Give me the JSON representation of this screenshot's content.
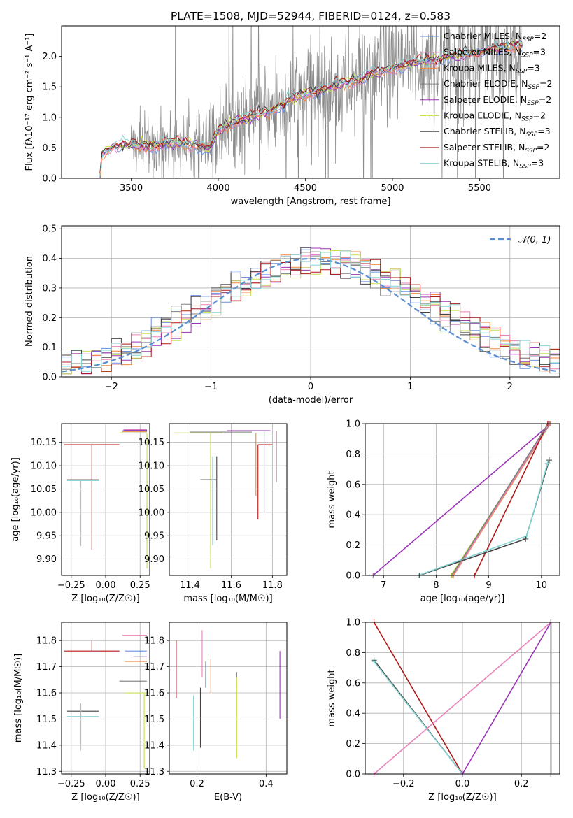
{
  "figure_title": "PLATE=1508, MJD=52944, FIBERID=0124, z=0.583",
  "model_colors": {
    "Chabrier MILES": "#6a8fe0",
    "Salpeter MILES": "#e882b8",
    "Kroupa MILES": "#f2863a",
    "Chabrier ELODIE": "#7f7f7f",
    "Salpeter ELODIE": "#9b35b5",
    "Kroupa ELODIE": "#c8dd55",
    "Chabrier STELIB": "#444444",
    "Salpeter STELIB": "#b01818",
    "Kroupa STELIB": "#87d4d4"
  },
  "legend_entries": [
    {
      "name": "Chabrier MILES",
      "n": "2"
    },
    {
      "name": "Salpeter MILES",
      "n": "3"
    },
    {
      "name": "Kroupa MILES",
      "n": "3"
    },
    {
      "name": "Chabrier ELODIE",
      "n": "2"
    },
    {
      "name": "Salpeter ELODIE",
      "n": "2"
    },
    {
      "name": "Kroupa ELODIE",
      "n": "2"
    },
    {
      "name": "Chabrier STELIB",
      "n": "3"
    },
    {
      "name": "Salpeter STELIB",
      "n": "2"
    },
    {
      "name": "Kroupa STELIB",
      "n": "3"
    }
  ],
  "chart_data": [
    {
      "id": "spectrum",
      "type": "line",
      "xlabel": "wavelength [Angstrom, rest frame]",
      "ylabel": "Flux [fλ10⁻¹⁷ erg cm⁻² s⁻¹ A⁻¹]",
      "xlim": [
        3100,
        5960
      ],
      "ylim": [
        0,
        2.5
      ],
      "xticks": [
        3500,
        4000,
        4500,
        5000,
        5500
      ],
      "yticks": [
        0.0,
        0.5,
        1.0,
        1.5,
        2.0
      ],
      "data_series": "observed spectrum (grey, noisy)",
      "model_continuum": {
        "x": [
          3100,
          3320,
          3330,
          3400,
          3500,
          3600,
          3700,
          3800,
          3900,
          3950,
          4000,
          4100,
          4200,
          4300,
          4400,
          4500,
          4600,
          4700,
          4800,
          4900,
          5000,
          5100,
          5200,
          5300,
          5400,
          5500,
          5600,
          5700,
          5750
        ],
        "y": [
          0,
          0,
          0.38,
          0.55,
          0.55,
          0.52,
          0.57,
          0.57,
          0.55,
          0.48,
          0.78,
          0.95,
          1.0,
          1.1,
          1.28,
          1.38,
          1.45,
          1.55,
          1.62,
          1.72,
          1.8,
          1.88,
          1.92,
          1.98,
          2.02,
          2.08,
          2.12,
          2.18,
          2.2
        ]
      }
    },
    {
      "id": "residuals",
      "type": "histogram",
      "xlabel": "(data-model)/error",
      "ylabel": "Normed distribution",
      "xlim": [
        -2.5,
        2.5
      ],
      "ylim": [
        0,
        0.51
      ],
      "xticks": [
        -2,
        -1,
        0,
        1,
        2
      ],
      "yticks": [
        0.0,
        0.1,
        0.2,
        0.3,
        0.4,
        0.5
      ],
      "legend": "𝒩(0, 1)",
      "reference_curve": "standard normal pdf (dashed)"
    },
    {
      "id": "age_vs_Z",
      "type": "errorbar",
      "xlabel": "Z [log₁₀(Z/Z☉)]",
      "ylabel": "age  [log₁₀(age/yr)]",
      "xlim": [
        -0.32,
        0.32
      ],
      "ylim": [
        9.865,
        10.19
      ],
      "xticks": [
        -0.25,
        0.0,
        0.25
      ],
      "yticks": [
        9.9,
        9.95,
        10.0,
        10.05,
        10.1,
        10.15
      ],
      "points": [
        {
          "model": "Chabrier MILES",
          "x": 0.2,
          "xerr": [
            0.08,
            0.1
          ],
          "y": 10.175,
          "yerr": [
            0.0,
            0.0
          ]
        },
        {
          "model": "Salpeter MILES",
          "x": 0.21,
          "xerr": [
            0.08,
            0.09
          ],
          "y": 10.177,
          "yerr": [
            0.0,
            0.0
          ]
        },
        {
          "model": "Kroupa MILES",
          "x": 0.2,
          "xerr": [
            0.08,
            0.1
          ],
          "y": 10.173,
          "yerr": [
            0.0,
            0.0
          ]
        },
        {
          "model": "Chabrier ELODIE",
          "x": 0.2,
          "xerr": [
            0.09,
            0.1
          ],
          "y": 10.17,
          "yerr": [
            0.0,
            0.0
          ]
        },
        {
          "model": "Salpeter ELODIE",
          "x": 0.21,
          "xerr": [
            0.08,
            0.09
          ],
          "y": 10.176,
          "yerr": [
            0.0,
            0.0
          ]
        },
        {
          "model": "Kroupa ELODIE",
          "x": 0.3,
          "xerr": [
            0.2,
            0.0
          ],
          "y": 10.17,
          "yerr": [
            0.29,
            0.0
          ]
        },
        {
          "model": "Chabrier STELIB",
          "x": -0.18,
          "xerr": [
            0.1,
            0.13
          ],
          "y": 10.07,
          "yerr": [
            0.0,
            0.0
          ]
        },
        {
          "model": "Salpeter STELIB",
          "x": -0.1,
          "xerr": [
            0.2,
            0.2
          ],
          "y": 10.145,
          "yerr": [
            0.225,
            0.0
          ]
        },
        {
          "model": "Kroupa STELIB",
          "x": -0.18,
          "xerr": [
            0.1,
            0.13
          ],
          "y": 10.068,
          "yerr": [
            0.14,
            0.0
          ]
        }
      ]
    },
    {
      "id": "age_vs_mass",
      "type": "errorbar",
      "xlabel": "mass [log₁₀(M/M☉)]",
      "ylabel": "",
      "xlim": [
        11.3,
        11.87
      ],
      "ylim": [
        9.865,
        10.19
      ],
      "xticks": [
        11.4,
        11.6,
        11.8
      ],
      "yticks": [
        9.9,
        9.95,
        10.0,
        10.05,
        10.1,
        10.15
      ],
      "points": [
        {
          "model": "Chabrier MILES",
          "x": 11.76,
          "xerr": [
            0.0,
            0.0
          ],
          "y": 10.1,
          "yerr": [
            0.1,
            0.075
          ]
        },
        {
          "model": "Salpeter MILES",
          "x": 11.82,
          "xerr": [
            0.0,
            0.0
          ],
          "y": 10.14,
          "yerr": [
            0.075,
            0.035
          ]
        },
        {
          "model": "Kroupa MILES",
          "x": 11.72,
          "xerr": [
            0.0,
            0.0
          ],
          "y": 10.07,
          "yerr": [
            0.035,
            0.1
          ]
        },
        {
          "model": "Chabrier ELODIE",
          "x": 11.5,
          "xerr": [
            0.1,
            0.2
          ],
          "y": 10.172,
          "yerr": [
            0.0,
            0.0
          ]
        },
        {
          "model": "Salpeter ELODIE",
          "x": 11.65,
          "xerr": [
            0.07,
            0.14
          ],
          "y": 10.175,
          "yerr": [
            0.0,
            0.0
          ]
        },
        {
          "model": "Kroupa ELODIE",
          "x": 11.5,
          "xerr": [
            0.18,
            0.06
          ],
          "y": 10.17,
          "yerr": [
            0.29,
            0.0
          ]
        },
        {
          "model": "Chabrier STELIB",
          "x": 11.53,
          "xerr": [
            0.08,
            0.0
          ],
          "y": 10.07,
          "yerr": [
            0.13,
            0.05
          ]
        },
        {
          "model": "Salpeter STELIB",
          "x": 11.73,
          "xerr": [
            0.0,
            0.07
          ],
          "y": 10.145,
          "yerr": [
            0.16,
            0.0
          ]
        },
        {
          "model": "Kroupa STELIB",
          "x": 11.51,
          "xerr": [
            0.0,
            0.0
          ],
          "y": 10.07,
          "yerr": [
            0.14,
            0.05
          ]
        }
      ]
    },
    {
      "id": "weight_vs_age",
      "type": "line",
      "xlabel": "age  [log₁₀(age/yr)]",
      "ylabel": "mass weight",
      "xlim": [
        6.65,
        10.35
      ],
      "ylim": [
        0,
        1
      ],
      "xticks": [
        7,
        8,
        9,
        10
      ],
      "yticks": [
        0.0,
        0.2,
        0.4,
        0.6,
        0.8,
        1.0
      ],
      "series": [
        {
          "model": "Salpeter ELODIE",
          "x": [
            6.8,
            10.18
          ],
          "y": [
            0.0,
            1.0
          ]
        },
        {
          "model": "Kroupa ELODIE",
          "x": [
            8.28,
            10.15
          ],
          "y": [
            0.0,
            1.0
          ]
        },
        {
          "model": "Kroupa MILES",
          "x": [
            8.33,
            10.17
          ],
          "y": [
            0.0,
            1.0
          ]
        },
        {
          "model": "Chabrier MILES",
          "x": [
            8.3,
            10.16
          ],
          "y": [
            0.0,
            1.0
          ]
        },
        {
          "model": "Salpeter MILES",
          "x": [
            8.32,
            10.15
          ],
          "y": [
            0.0,
            1.0
          ]
        },
        {
          "model": "Salpeter STELIB",
          "x": [
            8.73,
            10.12
          ],
          "y": [
            0.0,
            1.0
          ]
        },
        {
          "model": "Chabrier STELIB",
          "x": [
            7.68,
            9.7,
            10.15
          ],
          "y": [
            0.0,
            0.24,
            0.76
          ]
        },
        {
          "model": "Kroupa STELIB",
          "x": [
            7.66,
            9.72,
            10.12
          ],
          "y": [
            0.0,
            0.26,
            0.74
          ]
        },
        {
          "model": "Chabrier ELODIE",
          "x": [
            8.3,
            10.13
          ],
          "y": [
            0.0,
            1.0
          ]
        }
      ]
    },
    {
      "id": "mass_vs_Z",
      "type": "errorbar",
      "xlabel": "Z [log₁₀(Z/Z☉)]",
      "ylabel": "mass [log₁₀(M/M☉)]",
      "xlim": [
        -0.32,
        0.32
      ],
      "ylim": [
        11.29,
        11.87
      ],
      "xticks": [
        -0.25,
        0.0,
        0.25
      ],
      "yticks": [
        11.3,
        11.4,
        11.5,
        11.6,
        11.7,
        11.8
      ],
      "points": [
        {
          "model": "Chabrier MILES",
          "x": 0.2,
          "xerr": [
            0.06,
            0.1
          ],
          "y": 11.76,
          "yerr": [
            0.0,
            0.0
          ]
        },
        {
          "model": "Salpeter MILES",
          "x": 0.21,
          "xerr": [
            0.09,
            0.09
          ],
          "y": 11.82,
          "yerr": [
            0.0,
            0.0
          ]
        },
        {
          "model": "Kroupa MILES",
          "x": 0.22,
          "xerr": [
            0.08,
            0.08
          ],
          "y": 11.72,
          "yerr": [
            0.0,
            0.0
          ]
        },
        {
          "model": "Chabrier ELODIE",
          "x": 0.2,
          "xerr": [
            0.1,
            0.1
          ],
          "y": 11.645,
          "yerr": [
            0.0,
            0.0
          ]
        },
        {
          "model": "Salpeter ELODIE",
          "x": 0.25,
          "xerr": [
            0.05,
            0.05
          ],
          "y": 11.74,
          "yerr": [
            0.0,
            0.0
          ]
        },
        {
          "model": "Kroupa ELODIE",
          "x": 0.28,
          "xerr": [
            0.14,
            0.02
          ],
          "y": 11.6,
          "yerr": [
            0.29,
            0.0
          ]
        },
        {
          "model": "Chabrier STELIB",
          "x": -0.18,
          "xerr": [
            0.1,
            0.13
          ],
          "y": 11.53,
          "yerr": [
            0.0,
            0.0
          ]
        },
        {
          "model": "Salpeter STELIB",
          "x": -0.1,
          "xerr": [
            0.2,
            0.2
          ],
          "y": 11.76,
          "yerr": [
            0.0,
            0.04
          ]
        },
        {
          "model": "Kroupa STELIB",
          "x": -0.18,
          "xerr": [
            0.1,
            0.13
          ],
          "y": 11.51,
          "yerr": [
            0.13,
            0.05
          ]
        }
      ]
    },
    {
      "id": "mass_vs_ebv",
      "type": "errorbar",
      "xlabel": "E(B-V)",
      "ylabel": "",
      "xlim": [
        0.12,
        0.46
      ],
      "ylim": [
        11.29,
        11.87
      ],
      "xticks": [
        0.2,
        0.4
      ],
      "yticks": [
        11.3,
        11.4,
        11.5,
        11.6,
        11.7,
        11.8
      ],
      "points": [
        {
          "model": "Chabrier MILES",
          "x": 0.225,
          "xerr": [
            0.0,
            0.0
          ],
          "y": 11.72,
          "yerr": [
            0.1,
            0.0
          ]
        },
        {
          "model": "Salpeter MILES",
          "x": 0.215,
          "xerr": [
            0.0,
            0.0
          ],
          "y": 11.74,
          "yerr": [
            0.08,
            0.1
          ]
        },
        {
          "model": "Kroupa MILES",
          "x": 0.24,
          "xerr": [
            0.0,
            0.0
          ],
          "y": 11.66,
          "yerr": [
            0.06,
            0.07
          ]
        },
        {
          "model": "Chabrier ELODIE",
          "x": 0.315,
          "xerr": [
            0.0,
            0.0
          ],
          "y": 11.66,
          "yerr": [
            0.0,
            0.02
          ]
        },
        {
          "model": "Salpeter ELODIE",
          "x": 0.44,
          "xerr": [
            0.0,
            0.0
          ],
          "y": 11.63,
          "yerr": [
            0.13,
            0.13
          ]
        },
        {
          "model": "Kroupa ELODIE",
          "x": 0.315,
          "xerr": [
            0.0,
            0.0
          ],
          "y": 11.52,
          "yerr": [
            0.17,
            0.14
          ]
        },
        {
          "model": "Chabrier STELIB",
          "x": 0.21,
          "xerr": [
            0.0,
            0.0
          ],
          "y": 11.5,
          "yerr": [
            0.11,
            0.12
          ]
        },
        {
          "model": "Salpeter STELIB",
          "x": 0.14,
          "xerr": [
            0.0,
            0.0
          ],
          "y": 11.69,
          "yerr": [
            0.11,
            0.11
          ]
        },
        {
          "model": "Kroupa STELIB",
          "x": 0.19,
          "xerr": [
            0.0,
            0.0
          ],
          "y": 11.48,
          "yerr": [
            0.1,
            0.11
          ]
        }
      ]
    },
    {
      "id": "weight_vs_Z",
      "type": "line",
      "xlabel": "Z [log₁₀(Z/Z☉)]",
      "ylabel": "mass weight",
      "xlim": [
        -0.33,
        0.33
      ],
      "ylim": [
        0,
        1
      ],
      "xticks": [
        -0.2,
        0.0,
        0.2
      ],
      "yticks": [
        0.0,
        0.2,
        0.4,
        0.6,
        0.8,
        1.0
      ],
      "series": [
        {
          "model": "Salpeter STELIB",
          "x": [
            -0.3,
            0.0
          ],
          "y": [
            1.0,
            0.0
          ]
        },
        {
          "model": "Chabrier STELIB",
          "x": [
            -0.3,
            0.0
          ],
          "y": [
            0.75,
            0.0
          ]
        },
        {
          "model": "Kroupa STELIB",
          "x": [
            -0.3,
            0.0
          ],
          "y": [
            0.74,
            0.0
          ]
        },
        {
          "model": "Salpeter MILES",
          "x": [
            -0.3,
            0.3
          ],
          "y": [
            0.0,
            1.0
          ]
        },
        {
          "model": "Salpeter ELODIE",
          "x": [
            0.0,
            0.3
          ],
          "y": [
            0.0,
            1.0
          ]
        },
        {
          "model": "Kroupa ELODIE",
          "x": [
            0.3,
            0.3
          ],
          "y": [
            0.0,
            1.0
          ]
        },
        {
          "model": "Kroupa MILES",
          "x": [
            0.3,
            0.3
          ],
          "y": [
            0.0,
            1.0
          ]
        },
        {
          "model": "Chabrier MILES",
          "x": [
            0.3,
            0.3
          ],
          "y": [
            0.0,
            1.0
          ]
        },
        {
          "model": "Chabrier ELODIE",
          "x": [
            0.3,
            0.3
          ],
          "y": [
            0.0,
            1.0
          ]
        }
      ]
    }
  ]
}
